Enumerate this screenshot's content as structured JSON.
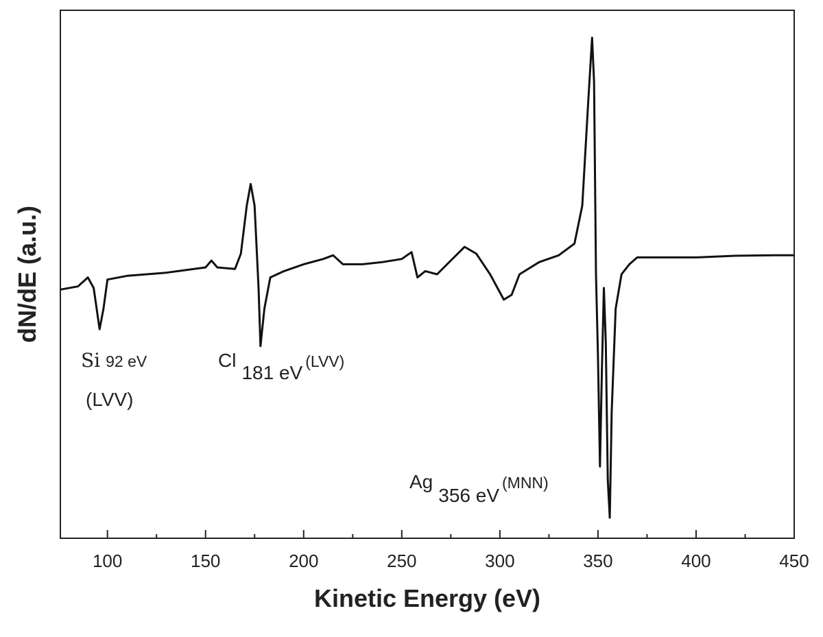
{
  "chart_data": {
    "type": "line",
    "xlabel": "Kinetic Energy (eV)",
    "ylabel": "dN/dE (a.u.)",
    "xlim": [
      76,
      450
    ],
    "ylim": [
      0,
      100
    ],
    "xticks": [
      100,
      150,
      200,
      250,
      300,
      350,
      400,
      450
    ],
    "x_minor_ticks": [
      125,
      175,
      225,
      275,
      325,
      375,
      425
    ],
    "series": [
      {
        "color": "#111111",
        "x": [
          76,
          85,
          90,
          93,
          96,
          98,
          100,
          110,
          130,
          150,
          153,
          156,
          165,
          168,
          171,
          173,
          175,
          177,
          178,
          180,
          183,
          190,
          200,
          210,
          215,
          220,
          230,
          240,
          250,
          255,
          258,
          262,
          268,
          275,
          282,
          288,
          295,
          302,
          306,
          310,
          320,
          330,
          338,
          342,
          345,
          347,
          348,
          349,
          350,
          351,
          352,
          353,
          354,
          355,
          356,
          357,
          359,
          362,
          366,
          370,
          380,
          400,
          420,
          440,
          450
        ],
        "values": [
          47.1,
          47.7,
          49.4,
          47.4,
          39.6,
          43.5,
          49.0,
          49.7,
          50.3,
          51.3,
          52.6,
          51.3,
          51.0,
          53.9,
          63.0,
          67.1,
          63.0,
          47.4,
          36.4,
          43.5,
          49.4,
          50.6,
          51.9,
          52.9,
          53.6,
          51.9,
          51.9,
          52.3,
          52.9,
          54.2,
          49.4,
          50.6,
          50.0,
          52.6,
          55.2,
          53.9,
          50.0,
          45.2,
          46.1,
          50.0,
          52.3,
          53.6,
          55.8,
          63.0,
          82.5,
          94.8,
          86.4,
          50.0,
          34.4,
          13.6,
          31.8,
          47.4,
          37.0,
          11.0,
          3.9,
          24.0,
          43.5,
          50.0,
          51.9,
          53.2,
          53.2,
          53.2,
          53.5,
          53.6,
          53.6
        ]
      }
    ],
    "annotations": [
      {
        "element": "Si",
        "energy": "92 eV",
        "transition": "(LVV)"
      },
      {
        "element": "Cl",
        "energy": "181 eV",
        "transition": "(LVV)"
      },
      {
        "element": "Ag",
        "energy": "356 eV",
        "transition": "(MNN)"
      }
    ]
  }
}
